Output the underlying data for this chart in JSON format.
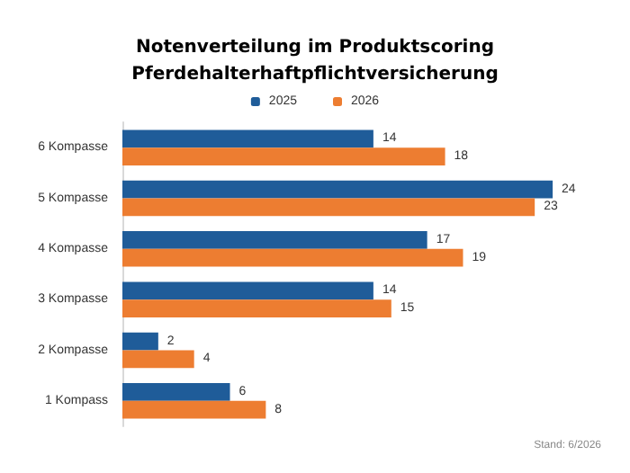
{
  "chart_data": {
    "type": "bar",
    "orientation": "horizontal",
    "title": "Notenverteilung im Produktscoring\nPferdehalterhaftpflichtversicherung",
    "categories": [
      "6 Kompasse",
      "5 Kompasse",
      "4 Kompasse",
      "3 Kompasse",
      "2 Kompasse",
      "1 Kompass"
    ],
    "series": [
      {
        "name": "2025",
        "color": "#1f5c99",
        "values": [
          14,
          24,
          17,
          14,
          2,
          6
        ]
      },
      {
        "name": "2026",
        "color": "#ed7d31",
        "values": [
          18,
          23,
          19,
          15,
          4,
          8
        ]
      }
    ],
    "data_labels": true,
    "legend": "top",
    "grid": false,
    "annotations": [
      "Stand: 6/2026"
    ]
  }
}
